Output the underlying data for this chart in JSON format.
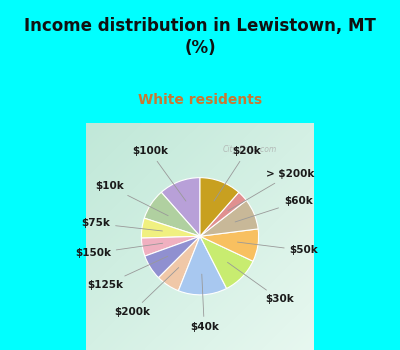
{
  "title": "Income distribution in Lewistown, MT\n(%)",
  "subtitle": "White residents",
  "title_color": "#111111",
  "subtitle_color": "#c87832",
  "bg_top": "#00ffff",
  "bg_chart_tl": "#c8eedd",
  "bg_chart_br": "#e8f8f0",
  "labels": [
    "$100k",
    "$10k",
    "$75k",
    "$150k",
    "$125k",
    "$200k",
    "$40k",
    "$30k",
    "$50k",
    "$60k",
    "> $200k",
    "$20k"
  ],
  "values": [
    11.5,
    8.5,
    5.5,
    5.0,
    7.0,
    6.5,
    13.5,
    10.5,
    9.0,
    8.5,
    3.0,
    11.5
  ],
  "colors": [
    "#b8a0d8",
    "#b0d0a0",
    "#f0f080",
    "#f0b0c0",
    "#9090d0",
    "#f0c8a8",
    "#a8c8f0",
    "#c8ec70",
    "#f8c060",
    "#c8b898",
    "#e09090",
    "#c8a020"
  ],
  "startangle": 90,
  "figsize": [
    4.0,
    3.5
  ],
  "dpi": 100,
  "label_fontsize": 7.5,
  "watermark": "City-Data.com"
}
